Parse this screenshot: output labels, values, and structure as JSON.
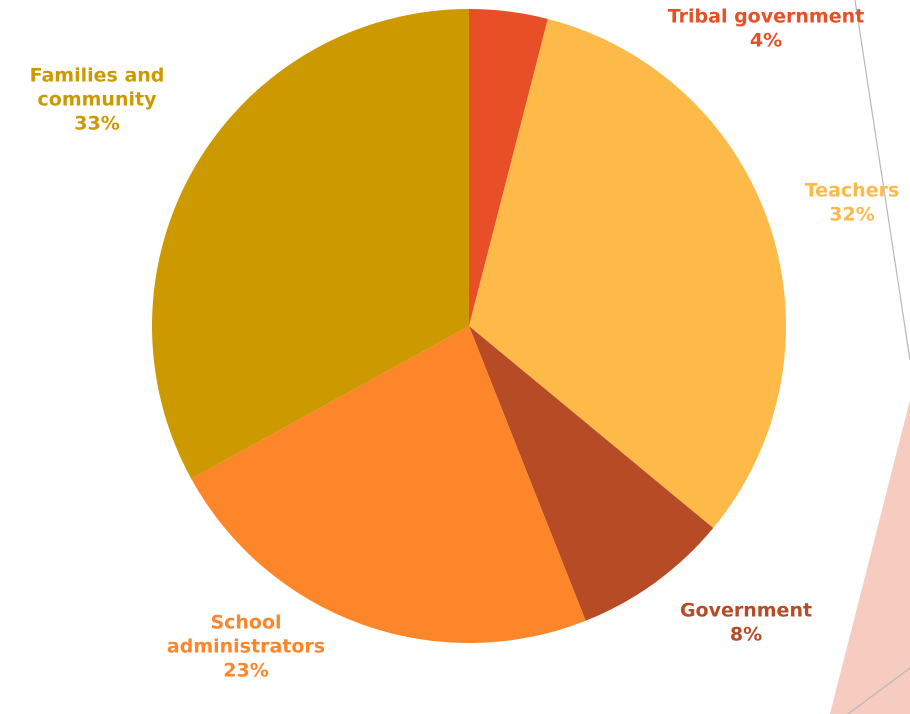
{
  "chart_data": {
    "type": "pie",
    "title": "",
    "start_angle_deg": 0,
    "direction": "clockwise",
    "slices": [
      {
        "name": "Tribal government",
        "label_lines": [
          "Tribal government"
        ],
        "percent_label": "4%",
        "value": 4,
        "color": "#e84f26",
        "label_color": "#e84f26"
      },
      {
        "name": "Teachers",
        "label_lines": [
          "Teachers"
        ],
        "percent_label": "32%",
        "value": 32,
        "color": "#fdba48",
        "label_color": "#fdba48"
      },
      {
        "name": "Government",
        "label_lines": [
          "Government"
        ],
        "percent_label": "8%",
        "value": 8,
        "color": "#b64b26",
        "label_color": "#b64b26"
      },
      {
        "name": "School administrators",
        "label_lines": [
          "School",
          "administrators"
        ],
        "percent_label": "23%",
        "value": 23,
        "color": "#fd862a",
        "label_color": "#fd862a"
      },
      {
        "name": "Families and community",
        "label_lines": [
          "Families and",
          "community"
        ],
        "percent_label": "33%",
        "value": 33,
        "color": "#cc9a00",
        "label_color": "#cc9a00"
      }
    ]
  },
  "background": {
    "decor_color": "#f6cbc0",
    "line_color": "#b8b8b8"
  }
}
